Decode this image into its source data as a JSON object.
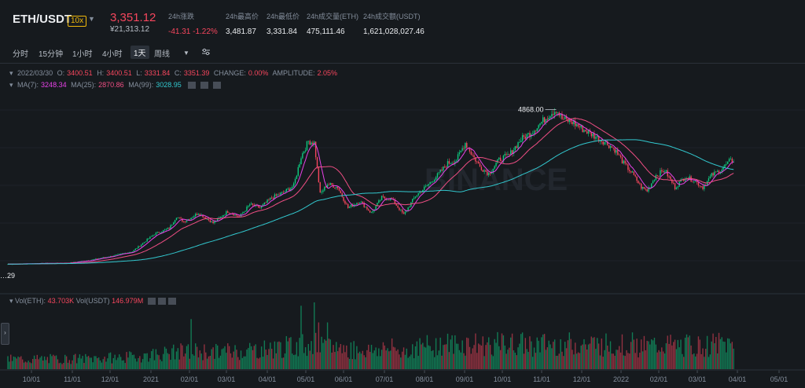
{
  "header": {
    "pair": "ETH/USDT",
    "leverage": "10x",
    "price": "3,351.12",
    "price_cny": "¥21,313.12",
    "stats": [
      {
        "label": "24h涨跌",
        "value": "-41.31 -1.22%",
        "negative": true
      },
      {
        "label": "24h最高价",
        "value": "3,481.87"
      },
      {
        "label": "24h最低价",
        "value": "3,331.84"
      },
      {
        "label": "24h成交量(ETH)",
        "value": "475,111.46"
      },
      {
        "label": "24h成交额(USDT)",
        "value": "1,621,028,027.46"
      }
    ]
  },
  "intervals": [
    "分时",
    "15分钟",
    "1小时",
    "4小时",
    "1天",
    "周线"
  ],
  "active_interval": "1天",
  "ohlc": {
    "date": "2022/03/30",
    "o": "3400.51",
    "h": "3400.51",
    "l": "3331.84",
    "c": "3351.39",
    "change": "0.00%",
    "amplitude": "2.05%",
    "o_label": "O:",
    "h_label": "H:",
    "l_label": "L:",
    "c_label": "C:",
    "change_label": "CHANGE:",
    "amplitude_label": "AMPLITUDE:"
  },
  "ma": {
    "ma7_label": "MA(7):",
    "ma7": "3248.34",
    "ma25_label": "MA(25):",
    "ma25": "2870.86",
    "ma99_label": "MA(99):",
    "ma99": "3028.95"
  },
  "vol": {
    "eth_label": "Vol(ETH):",
    "eth": "43.703K",
    "usdt_label": "Vol(USDT)",
    "usdt": "146.979M"
  },
  "watermark": "BINANCE",
  "colors": {
    "up": "#0ecb81",
    "down": "#f6465d",
    "ma7": "#e841e8",
    "ma25": "#f04e84",
    "ma99": "#32c8cf"
  },
  "chart_data": {
    "type": "candlestick",
    "annotations": {
      "max_label": "4868.00",
      "min_label": "…29"
    },
    "x_tick_labels": [
      "10/01",
      "11/01",
      "12/01",
      "2021",
      "02/01",
      "03/01",
      "04/01",
      "05/01",
      "06/01",
      "07/01",
      "08/01",
      "09/01",
      "10/01",
      "11/01",
      "12/01",
      "2022",
      "02/01",
      "03/01",
      "04/01",
      "05/01"
    ],
    "price_keypoints": [
      [
        0,
        360
      ],
      [
        20,
        380
      ],
      [
        40,
        390
      ],
      [
        55,
        470
      ],
      [
        70,
        590
      ],
      [
        85,
        730
      ],
      [
        100,
        1240
      ],
      [
        110,
        1400
      ],
      [
        115,
        1750
      ],
      [
        120,
        1600
      ],
      [
        130,
        1850
      ],
      [
        140,
        1560
      ],
      [
        150,
        1900
      ],
      [
        158,
        1740
      ],
      [
        165,
        2100
      ],
      [
        172,
        2000
      ],
      [
        180,
        2300
      ],
      [
        188,
        2450
      ],
      [
        195,
        2650
      ],
      [
        200,
        3500
      ],
      [
        205,
        3950
      ],
      [
        209,
        3900
      ],
      [
        213,
        2400
      ],
      [
        218,
        2700
      ],
      [
        225,
        2600
      ],
      [
        232,
        2000
      ],
      [
        240,
        2200
      ],
      [
        248,
        1850
      ],
      [
        255,
        2300
      ],
      [
        262,
        2250
      ],
      [
        270,
        1800
      ],
      [
        278,
        2350
      ],
      [
        286,
        2650
      ],
      [
        293,
        2950
      ],
      [
        300,
        3300
      ],
      [
        306,
        3400
      ],
      [
        312,
        3900
      ],
      [
        316,
        3600
      ],
      [
        322,
        3200
      ],
      [
        328,
        3000
      ],
      [
        335,
        3400
      ],
      [
        342,
        3550
      ],
      [
        350,
        4000
      ],
      [
        357,
        4200
      ],
      [
        364,
        4500
      ],
      [
        370,
        4750
      ],
      [
        374,
        4868
      ],
      [
        378,
        4600
      ],
      [
        385,
        4500
      ],
      [
        392,
        4300
      ],
      [
        400,
        4100
      ],
      [
        408,
        3900
      ],
      [
        414,
        3700
      ],
      [
        420,
        3300
      ],
      [
        426,
        3000
      ],
      [
        432,
        2600
      ],
      [
        436,
        2500
      ],
      [
        442,
        2950
      ],
      [
        448,
        3100
      ],
      [
        455,
        2600
      ],
      [
        462,
        2900
      ],
      [
        468,
        2800
      ],
      [
        474,
        2600
      ],
      [
        480,
        2950
      ],
      [
        486,
        3100
      ],
      [
        492,
        3350
      ],
      [
        495,
        3400
      ]
    ],
    "y_range": [
      0,
      5200
    ]
  }
}
